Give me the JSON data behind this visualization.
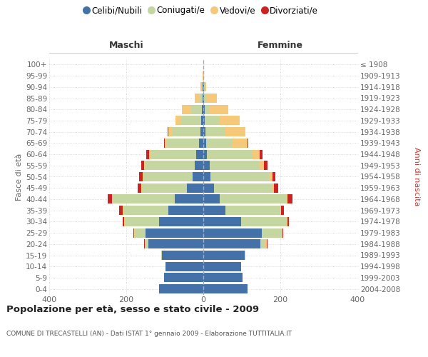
{
  "age_groups": [
    "0-4",
    "5-9",
    "10-14",
    "15-19",
    "20-24",
    "25-29",
    "30-34",
    "35-39",
    "40-44",
    "45-49",
    "50-54",
    "55-59",
    "60-64",
    "65-69",
    "70-74",
    "75-79",
    "80-84",
    "85-89",
    "90-94",
    "95-99",
    "100+"
  ],
  "birth_years": [
    "2004-2008",
    "1999-2003",
    "1994-1998",
    "1989-1993",
    "1984-1988",
    "1979-1983",
    "1974-1978",
    "1969-1973",
    "1964-1968",
    "1959-1963",
    "1954-1958",
    "1949-1953",
    "1944-1948",
    "1939-1943",
    "1934-1938",
    "1929-1933",
    "1924-1928",
    "1919-1923",
    "1914-1918",
    "1909-1913",
    "≤ 1908"
  ],
  "colors": {
    "celibi": "#4472a8",
    "coniugati": "#c5d6a0",
    "vedovi": "#f5c87a",
    "divorziati": "#cc2222"
  },
  "males": {
    "celibi": [
      115,
      102,
      98,
      108,
      142,
      150,
      115,
      90,
      75,
      42,
      28,
      22,
      18,
      12,
      8,
      5,
      4,
      1,
      1,
      0,
      0
    ],
    "coniugati": [
      0,
      0,
      0,
      2,
      8,
      28,
      88,
      118,
      160,
      118,
      128,
      128,
      118,
      82,
      72,
      52,
      28,
      8,
      2,
      0,
      0
    ],
    "vedovi": [
      0,
      0,
      0,
      0,
      1,
      2,
      2,
      2,
      2,
      2,
      2,
      3,
      4,
      6,
      10,
      16,
      24,
      14,
      4,
      1,
      0
    ],
    "divorziati": [
      0,
      0,
      0,
      0,
      2,
      2,
      4,
      8,
      12,
      8,
      8,
      8,
      8,
      2,
      2,
      0,
      0,
      0,
      0,
      0,
      0
    ]
  },
  "females": {
    "celibi": [
      115,
      102,
      98,
      108,
      148,
      152,
      98,
      58,
      42,
      28,
      18,
      16,
      10,
      8,
      5,
      4,
      3,
      2,
      1,
      0,
      0
    ],
    "coniugati": [
      0,
      0,
      0,
      2,
      14,
      52,
      118,
      142,
      172,
      152,
      152,
      128,
      118,
      68,
      52,
      38,
      14,
      5,
      2,
      0,
      0
    ],
    "vedovi": [
      0,
      0,
      0,
      0,
      2,
      2,
      2,
      2,
      4,
      4,
      9,
      14,
      18,
      38,
      52,
      52,
      48,
      28,
      5,
      2,
      0
    ],
    "divorziati": [
      0,
      0,
      0,
      0,
      2,
      2,
      4,
      8,
      14,
      10,
      8,
      8,
      8,
      2,
      0,
      0,
      0,
      0,
      0,
      0,
      0
    ]
  },
  "title": "Popolazione per età, sesso e stato civile - 2009",
  "subtitle": "COMUNE DI TRECASTELLI (AN) - Dati ISTAT 1° gennaio 2009 - Elaborazione TUTTITALIA.IT",
  "xlabel_left": "Maschi",
  "xlabel_right": "Femmine",
  "ylabel_left": "Fasce di età",
  "ylabel_right": "Anni di nascita",
  "xlim": 400,
  "legend_labels": [
    "Celibi/Nubili",
    "Coniugati/e",
    "Vedovi/e",
    "Divorziati/e"
  ]
}
